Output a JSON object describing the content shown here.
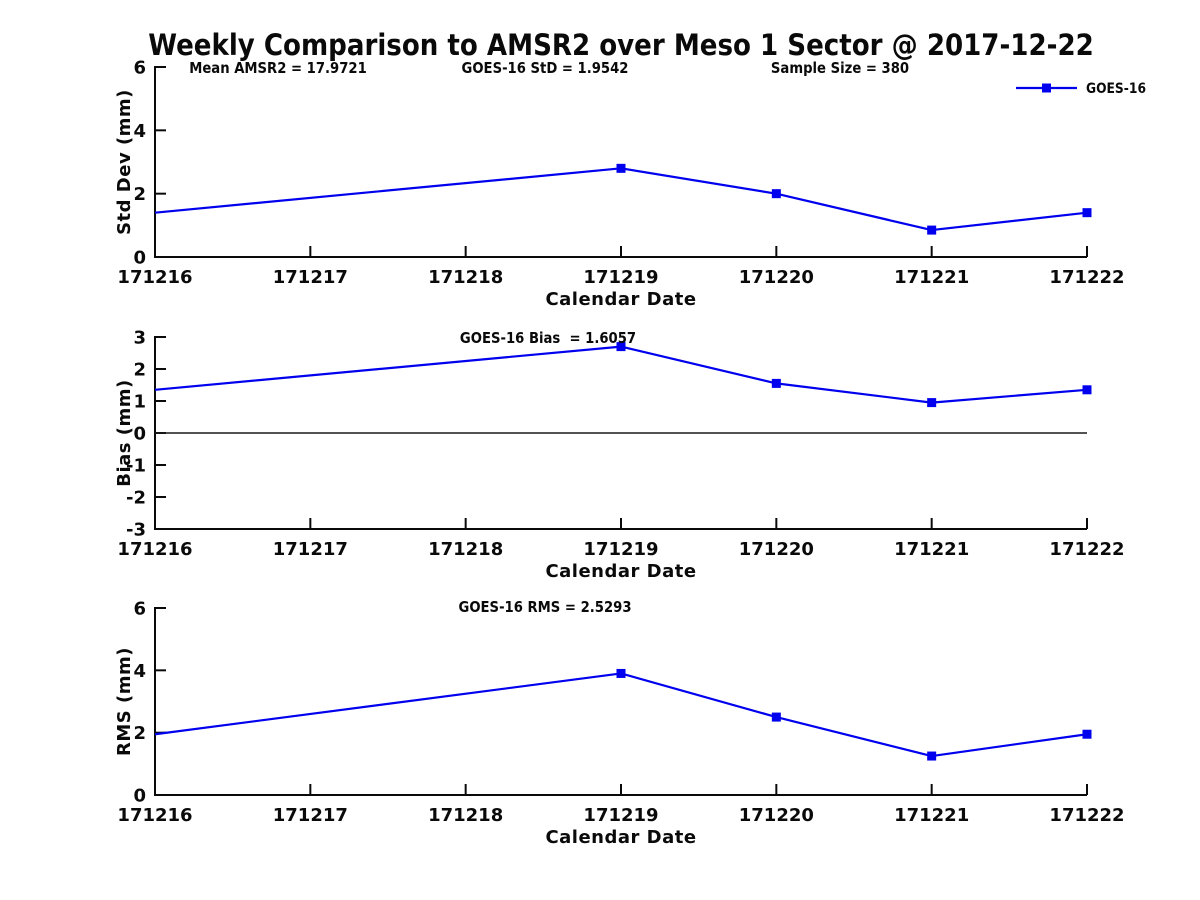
{
  "title": "Weekly Comparison to AMSR2 over Meso 1 Sector @ 2017-12-22",
  "colors": {
    "series": "#0000ee",
    "axis": "#0a0a0a",
    "zero_line": "#1a1a1a",
    "background": "#ffffff"
  },
  "legend": {
    "label": "GOES-16",
    "position": "top-right"
  },
  "chart_data": [
    {
      "type": "line",
      "name": "std-dev-panel",
      "annotations": [
        "Mean AMSR2 = 17.9721",
        "GOES-16 StD = 1.9542",
        "Sample Size = 380"
      ],
      "ylabel": "Std Dev (mm)",
      "xlabel": "Calendar Date",
      "ylim": [
        0,
        6
      ],
      "yticks": [
        0,
        2,
        4,
        6
      ],
      "grid": false,
      "zero_line": false,
      "categories": [
        "171216",
        "171217",
        "171218",
        "171219",
        "171220",
        "171221",
        "171222"
      ],
      "series": [
        {
          "name": "GOES-16",
          "x": [
            "171216",
            "171219",
            "171220",
            "171221",
            "171222"
          ],
          "values": [
            1.4,
            2.8,
            2.0,
            0.85,
            1.4
          ],
          "markers": [
            false,
            true,
            true,
            true,
            true
          ]
        }
      ]
    },
    {
      "type": "line",
      "name": "bias-panel",
      "annotations": [
        "GOES-16 Bias  = 1.6057"
      ],
      "ylabel": "Bias (mm)",
      "xlabel": "Calendar Date",
      "ylim": [
        -3,
        3
      ],
      "yticks": [
        -3,
        -2,
        -1,
        0,
        1,
        2,
        3
      ],
      "grid": false,
      "zero_line": true,
      "categories": [
        "171216",
        "171217",
        "171218",
        "171219",
        "171220",
        "171221",
        "171222"
      ],
      "series": [
        {
          "name": "GOES-16",
          "x": [
            "171216",
            "171219",
            "171220",
            "171221",
            "171222"
          ],
          "values": [
            1.35,
            2.7,
            1.55,
            0.95,
            1.35
          ],
          "markers": [
            false,
            true,
            true,
            true,
            true
          ]
        }
      ]
    },
    {
      "type": "line",
      "name": "rms-panel",
      "annotations": [
        "GOES-16 RMS = 2.5293"
      ],
      "ylabel": "RMS (mm)",
      "xlabel": "Calendar Date",
      "ylim": [
        0,
        6
      ],
      "yticks": [
        0,
        2,
        4,
        6
      ],
      "grid": false,
      "zero_line": false,
      "categories": [
        "171216",
        "171217",
        "171218",
        "171219",
        "171220",
        "171221",
        "171222"
      ],
      "series": [
        {
          "name": "GOES-16",
          "x": [
            "171216",
            "171219",
            "171220",
            "171221",
            "171222"
          ],
          "values": [
            1.95,
            3.9,
            2.5,
            1.25,
            1.95
          ],
          "markers": [
            false,
            true,
            true,
            true,
            true
          ]
        }
      ]
    }
  ]
}
